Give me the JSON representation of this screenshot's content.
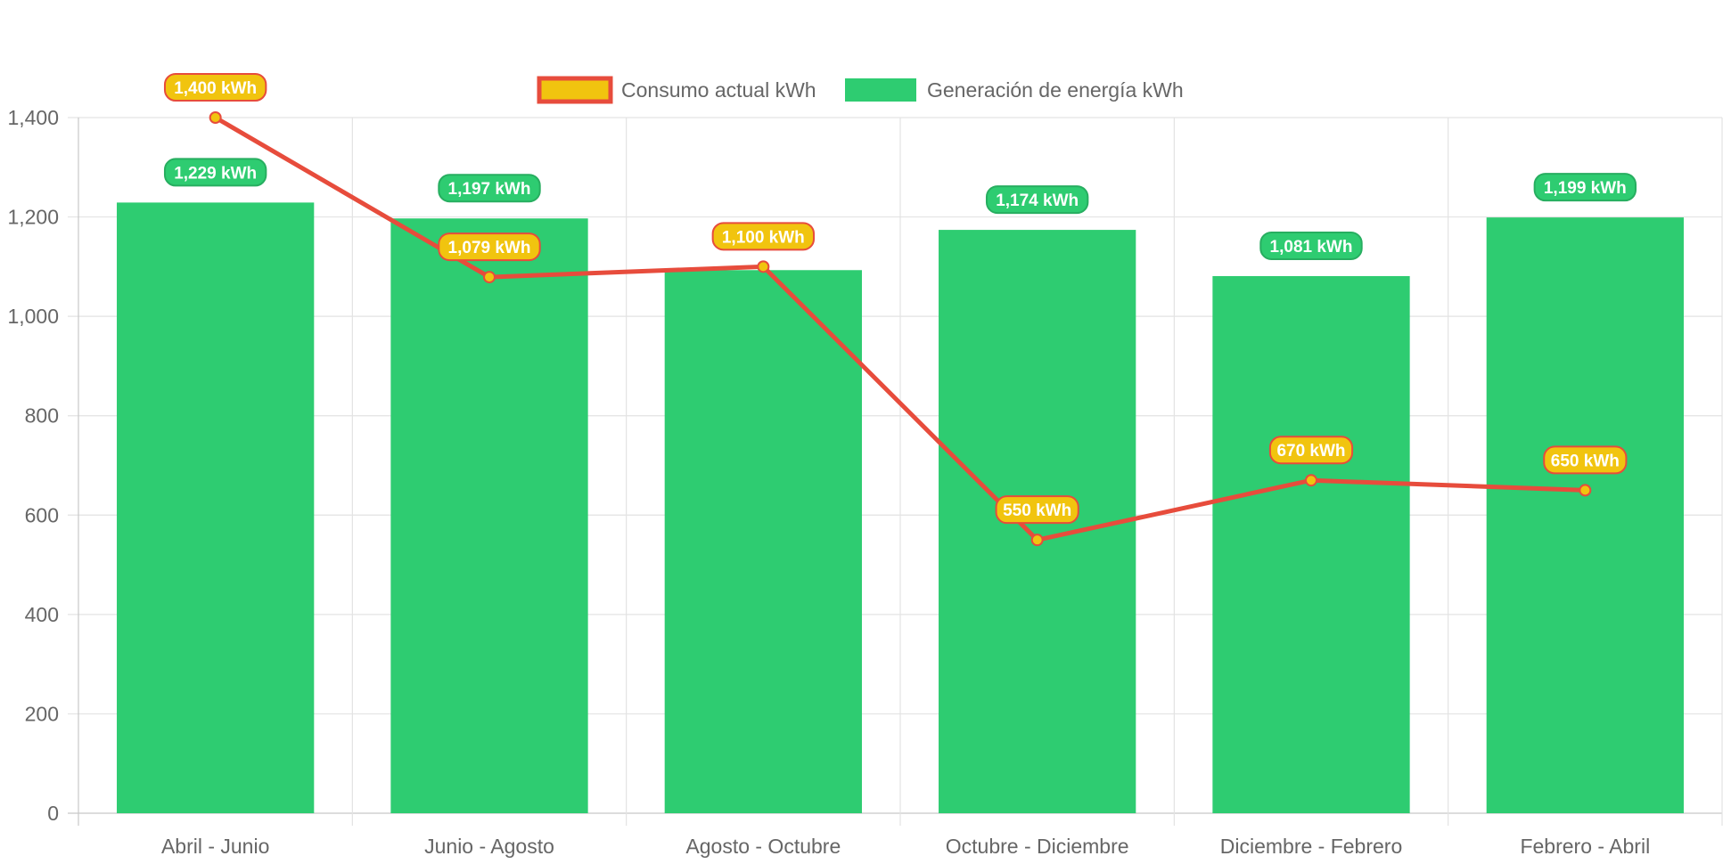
{
  "chart_data": {
    "type": "bar",
    "categories": [
      "Abril - Junio",
      "Junio - Agosto",
      "Agosto - Octubre",
      "Octubre - Diciembre",
      "Diciembre - Febrero",
      "Febrero - Abril"
    ],
    "series": [
      {
        "name": "Consumo actual kWh",
        "type": "line",
        "values": [
          1400,
          1079,
          1100,
          550,
          670,
          650
        ],
        "labels": [
          "1,400 kWh",
          "1,079 kWh",
          "1,100 kWh",
          "550 kWh",
          "670 kWh",
          "650 kWh"
        ],
        "color": "#e74c3c",
        "fill": "#f1c40f"
      },
      {
        "name": "Generación de energía kWh",
        "type": "bar",
        "values": [
          1229,
          1197,
          1093,
          1174,
          1081,
          1199
        ],
        "labels": [
          "1,229 kWh",
          "1,197 kWh",
          "",
          "1,174 kWh",
          "1,081 kWh",
          "1,199 kWh"
        ],
        "color": "#2ecc71"
      }
    ],
    "yticks": [
      "0",
      "200",
      "400",
      "600",
      "800",
      "1,000",
      "1,200",
      "1,400"
    ],
    "ylim": [
      0,
      1400
    ],
    "legend_position": "top",
    "grid": true
  }
}
